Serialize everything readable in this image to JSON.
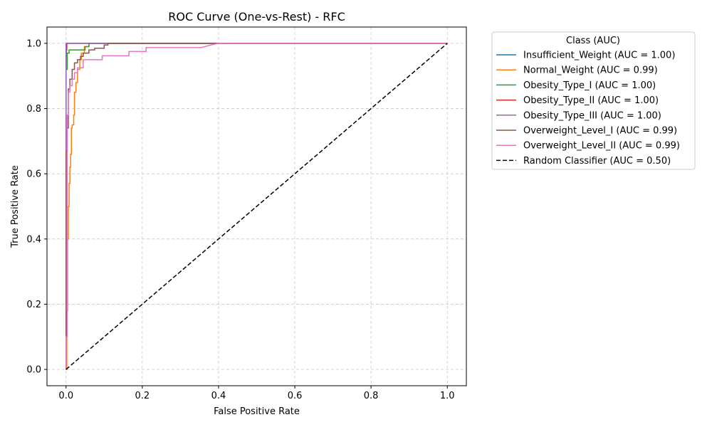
{
  "chart_data": {
    "type": "line",
    "title": "ROC Curve (One-vs-Rest) - RFC",
    "xlabel": "False Positive Rate",
    "ylabel": "True Positive Rate",
    "xlim": [
      -0.05,
      1.05
    ],
    "ylim": [
      -0.05,
      1.05
    ],
    "xticks": [
      0.0,
      0.2,
      0.4,
      0.6,
      0.8,
      1.0
    ],
    "yticks": [
      0.0,
      0.2,
      0.4,
      0.6,
      0.8,
      1.0
    ],
    "xtick_labels": [
      "0.0",
      "0.2",
      "0.4",
      "0.6",
      "0.8",
      "1.0"
    ],
    "ytick_labels": [
      "0.0",
      "0.2",
      "0.4",
      "0.6",
      "0.8",
      "1.0"
    ],
    "grid": true,
    "legend": {
      "title": "Class (AUC)",
      "placement": "outside-right"
    },
    "series": [
      {
        "name": "Insufficient_Weight (AUC = 1.00)",
        "color": "#1f77b4",
        "dash": "solid",
        "x": [
          0,
          0,
          0.002,
          0.005,
          1.0
        ],
        "y": [
          0,
          0.95,
          1.0,
          1.0,
          1.0
        ]
      },
      {
        "name": "Normal_Weight (AUC = 0.99)",
        "color": "#ff7f0e",
        "dash": "solid",
        "x": [
          0,
          0.002,
          0.002,
          0.004,
          0.004,
          0.006,
          0.006,
          0.008,
          0.008,
          0.01,
          0.01,
          0.012,
          0.012,
          0.014,
          0.014,
          0.016,
          0.016,
          0.02,
          0.02,
          0.022,
          0.022,
          0.026,
          0.026,
          0.03,
          0.03,
          0.036,
          0.036,
          0.04,
          0.04,
          0.048,
          0.048,
          0.06,
          0.06,
          1.0
        ],
        "y": [
          0,
          0,
          0.18,
          0.18,
          0.4,
          0.4,
          0.5,
          0.5,
          0.57,
          0.57,
          0.62,
          0.62,
          0.66,
          0.66,
          0.74,
          0.74,
          0.75,
          0.75,
          0.78,
          0.78,
          0.85,
          0.85,
          0.88,
          0.88,
          0.92,
          0.92,
          0.95,
          0.95,
          0.97,
          0.97,
          0.99,
          0.99,
          1.0,
          1.0
        ]
      },
      {
        "name": "Obesity_Type_I (AUC = 1.00)",
        "color": "#2ca02c",
        "dash": "solid",
        "x": [
          0,
          0,
          0.003,
          0.003,
          0.008,
          0.008,
          0.05,
          0.05,
          0.06,
          0.06,
          1.0
        ],
        "y": [
          0,
          0.92,
          0.92,
          0.97,
          0.97,
          0.98,
          0.98,
          0.99,
          0.99,
          1.0,
          1.0
        ]
      },
      {
        "name": "Obesity_Type_II (AUC = 1.00)",
        "color": "#d62728",
        "dash": "solid",
        "x": [
          0,
          0,
          0.002,
          0.002,
          1.0
        ],
        "y": [
          0,
          0.98,
          0.98,
          1.0,
          1.0
        ]
      },
      {
        "name": "Obesity_Type_III (AUC = 1.00)",
        "color": "#9467bd",
        "dash": "solid",
        "x": [
          0,
          0,
          1.0
        ],
        "y": [
          0,
          1.0,
          1.0
        ]
      },
      {
        "name": "Overweight_Level_I (AUC = 0.99)",
        "color": "#8c564b",
        "dash": "solid",
        "x": [
          0,
          0,
          0.003,
          0.003,
          0.006,
          0.006,
          0.01,
          0.01,
          0.016,
          0.016,
          0.022,
          0.022,
          0.03,
          0.03,
          0.038,
          0.038,
          0.045,
          0.045,
          0.06,
          0.06,
          0.075,
          0.075,
          0.1,
          0.1,
          0.11,
          0.11,
          1.0
        ],
        "y": [
          0,
          0.67,
          0.67,
          0.74,
          0.74,
          0.86,
          0.86,
          0.89,
          0.89,
          0.92,
          0.92,
          0.94,
          0.94,
          0.95,
          0.95,
          0.96,
          0.96,
          0.97,
          0.97,
          0.98,
          0.98,
          0.985,
          0.985,
          0.995,
          0.995,
          1.0,
          1.0
        ]
      },
      {
        "name": "Overweight_Level_II (AUC = 0.99)",
        "color": "#e377c2",
        "dash": "solid",
        "x": [
          0,
          0,
          0.003,
          0.003,
          0.006,
          0.006,
          0.01,
          0.01,
          0.016,
          0.016,
          0.022,
          0.022,
          0.03,
          0.03,
          0.045,
          0.045,
          0.095,
          0.095,
          0.165,
          0.165,
          0.21,
          0.21,
          0.355,
          0.38,
          0.4,
          1.0
        ],
        "y": [
          0,
          0.1,
          0.1,
          0.78,
          0.78,
          0.85,
          0.85,
          0.87,
          0.87,
          0.89,
          0.89,
          0.91,
          0.91,
          0.925,
          0.925,
          0.95,
          0.95,
          0.962,
          0.962,
          0.975,
          0.975,
          0.987,
          0.987,
          0.995,
          1.0,
          1.0
        ]
      },
      {
        "name": "Random Classifier (AUC = 0.50)",
        "color": "#000000",
        "dash": "dashed",
        "x": [
          0,
          1.0
        ],
        "y": [
          0,
          1.0
        ]
      }
    ]
  }
}
